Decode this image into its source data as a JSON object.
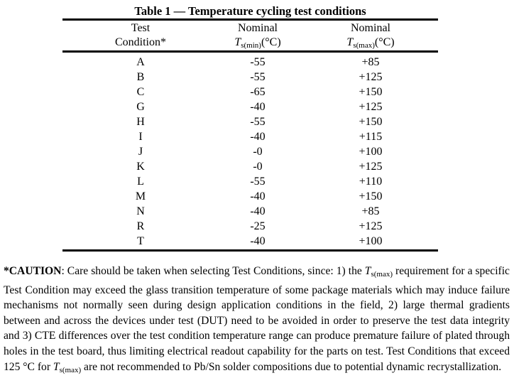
{
  "table": {
    "title": "Table 1 — Temperature cycling test conditions",
    "headers": [
      {
        "line1": "Test",
        "line2": "Condition*"
      },
      {
        "line1": "Nominal",
        "symbol": "T",
        "sub": "s(min)",
        "unit": "(°C)"
      },
      {
        "line1": "Nominal",
        "symbol": "T",
        "sub": "s(max)",
        "unit": "(°C)"
      }
    ],
    "rows": [
      {
        "cond": "A",
        "min": "-55",
        "max": "+85"
      },
      {
        "cond": "B",
        "min": "-55",
        "max": "+125"
      },
      {
        "cond": "C",
        "min": "-65",
        "max": "+150"
      },
      {
        "cond": "G",
        "min": "-40",
        "max": "+125"
      },
      {
        "cond": "H",
        "min": "-55",
        "max": "+150"
      },
      {
        "cond": "I",
        "min": "-40",
        "max": "+115"
      },
      {
        "cond": "J",
        "min": "-0",
        "max": "+100"
      },
      {
        "cond": "K",
        "min": "-0",
        "max": "+125"
      },
      {
        "cond": "L",
        "min": "-55",
        "max": "+110"
      },
      {
        "cond": "M",
        "min": "-40",
        "max": "+150"
      },
      {
        "cond": "N",
        "min": "-40",
        "max": "+85"
      },
      {
        "cond": "R",
        "min": "-25",
        "max": "+125"
      },
      {
        "cond": "T",
        "min": "-40",
        "max": "+100"
      }
    ]
  },
  "caution": {
    "label": "*CAUTION",
    "part1": ": Care should be taken when selecting Test Conditions, since: 1) the ",
    "sym1": "T",
    "sub1": "s(max)",
    "part2": " requirement  for a specific Test Condition may exceed the glass transition temperature of some package materials which may induce failure mechanisms not normally seen during design application conditions in the field, 2) large thermal gradients between and across the devices under test (DUT) need to be avoided in order to preserve the test data integrity and  3) CTE differences over the test condition temperature range can produce premature failure of plated through holes in the test board, thus limiting electrical readout capability for the parts on test.  Test Conditions that exceed 125 °C for ",
    "sym2": "T",
    "sub2": "s(max)",
    "part3": " are not recommended to Pb/Sn solder compositions due to potential dynamic recrystallization."
  }
}
